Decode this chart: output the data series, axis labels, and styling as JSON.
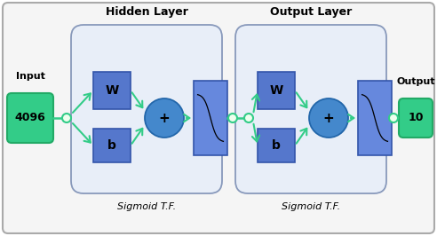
{
  "bg_color": "#ffffff",
  "border_outer": "#cccccc",
  "green_color": "#33cc88",
  "green_border": "#22aa66",
  "blue_w_color": "#5577cc",
  "blue_w_border": "#3355aa",
  "blue_sig_color": "#6688dd",
  "blue_sig_border": "#3355aa",
  "circle_color": "#4488cc",
  "circle_border": "#2266aa",
  "arrow_color": "#33cc88",
  "small_circle_fill": "#ccffee",
  "small_circle_border": "#33cc88",
  "rounded_bg": "#e8eef8",
  "rounded_border": "#8899bb",
  "title1": "Hidden Layer",
  "title2": "Output Layer",
  "label_input": "Input",
  "label_output": "Output",
  "label_4096": "4096",
  "label_10": "10",
  "label_w": "W",
  "label_b": "b",
  "label_plus": "+",
  "label_sig1": "Sigmoid T.F.",
  "label_sig2": "Sigmoid T.F.",
  "fig_width": 4.92,
  "fig_height": 2.66,
  "dpi": 100
}
